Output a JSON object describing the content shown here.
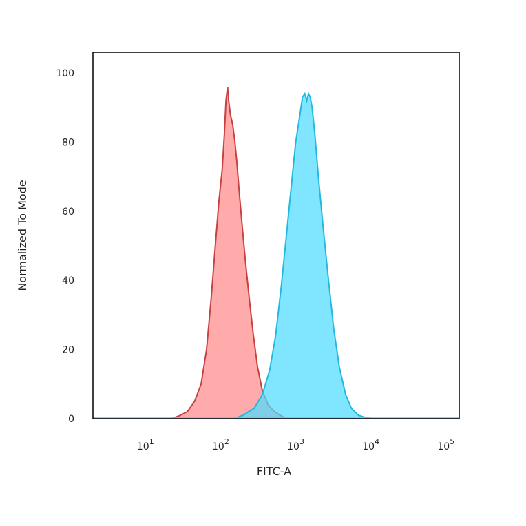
{
  "chart_data": {
    "type": "area",
    "xlabel": "FITC-A",
    "ylabel": "Normalized To Mode",
    "xscale": "log",
    "xlim": [
      2,
      150000
    ],
    "ylim": [
      0,
      100
    ],
    "grid": false,
    "x_ticks": [
      {
        "base": "10",
        "exp": "1",
        "value": 10
      },
      {
        "base": "10",
        "exp": "2",
        "value": 100
      },
      {
        "base": "10",
        "exp": "3",
        "value": 1000
      },
      {
        "base": "10",
        "exp": "4",
        "value": 10000
      },
      {
        "base": "10",
        "exp": "5",
        "value": 100000
      }
    ],
    "y_ticks": [
      "0",
      "20",
      "40",
      "60",
      "80",
      "100"
    ],
    "series": [
      {
        "fill": "#ff8a8a",
        "stroke": "#c84040",
        "points": [
          [
            22,
            0
          ],
          [
            28,
            0.8
          ],
          [
            36,
            2
          ],
          [
            45,
            5
          ],
          [
            55,
            10
          ],
          [
            65,
            20
          ],
          [
            75,
            35
          ],
          [
            85,
            50
          ],
          [
            95,
            63
          ],
          [
            105,
            72
          ],
          [
            112,
            82
          ],
          [
            118,
            92
          ],
          [
            124,
            96
          ],
          [
            128,
            92
          ],
          [
            135,
            88
          ],
          [
            145,
            85
          ],
          [
            155,
            80
          ],
          [
            165,
            74
          ],
          [
            178,
            65
          ],
          [
            195,
            55
          ],
          [
            215,
            45
          ],
          [
            240,
            35
          ],
          [
            270,
            25
          ],
          [
            310,
            15
          ],
          [
            360,
            8
          ],
          [
            430,
            4
          ],
          [
            520,
            2
          ],
          [
            620,
            1
          ],
          [
            750,
            0
          ]
        ]
      },
      {
        "fill": "#4fdcff",
        "stroke": "#22b8e0",
        "points": [
          [
            150,
            0
          ],
          [
            200,
            1
          ],
          [
            280,
            3
          ],
          [
            360,
            7
          ],
          [
            450,
            14
          ],
          [
            540,
            24
          ],
          [
            640,
            38
          ],
          [
            760,
            54
          ],
          [
            880,
            68
          ],
          [
            1000,
            80
          ],
          [
            1120,
            87
          ],
          [
            1230,
            93
          ],
          [
            1320,
            94
          ],
          [
            1400,
            92
          ],
          [
            1480,
            94
          ],
          [
            1560,
            93
          ],
          [
            1650,
            90
          ],
          [
            1800,
            82
          ],
          [
            2000,
            70
          ],
          [
            2300,
            56
          ],
          [
            2700,
            41
          ],
          [
            3200,
            26
          ],
          [
            3800,
            15
          ],
          [
            4600,
            7
          ],
          [
            5500,
            3
          ],
          [
            6800,
            1
          ],
          [
            8500,
            0.3
          ],
          [
            11000,
            0
          ]
        ]
      }
    ]
  }
}
